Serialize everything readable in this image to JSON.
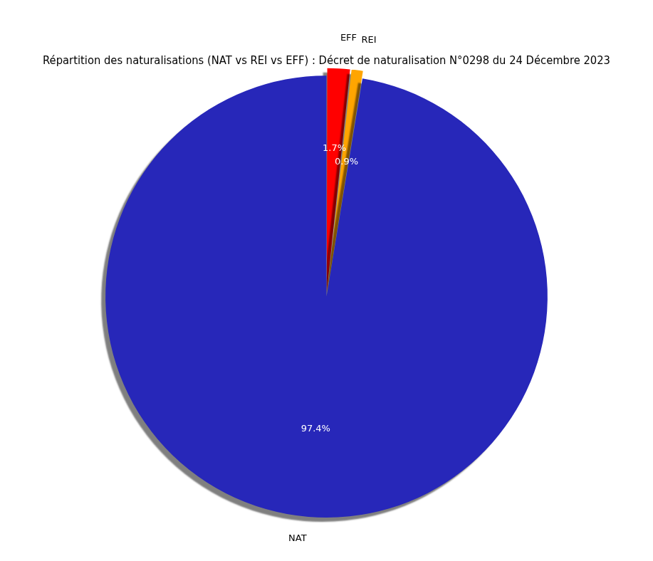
{
  "chart_data": {
    "type": "pie",
    "title": "Répartition des naturalisations (NAT vs REI vs EFF) : Décret de naturalisation N°0298 du 24 Décembre 2023",
    "categories": [
      "EFF",
      "REI",
      "NAT"
    ],
    "values": [
      1.7,
      0.9,
      97.4
    ],
    "value_labels": [
      "1.7%",
      "0.9%",
      "97.4%"
    ],
    "colors": [
      "#ff0000",
      "#ffa500",
      "#2727b9"
    ],
    "data_labels": true
  }
}
